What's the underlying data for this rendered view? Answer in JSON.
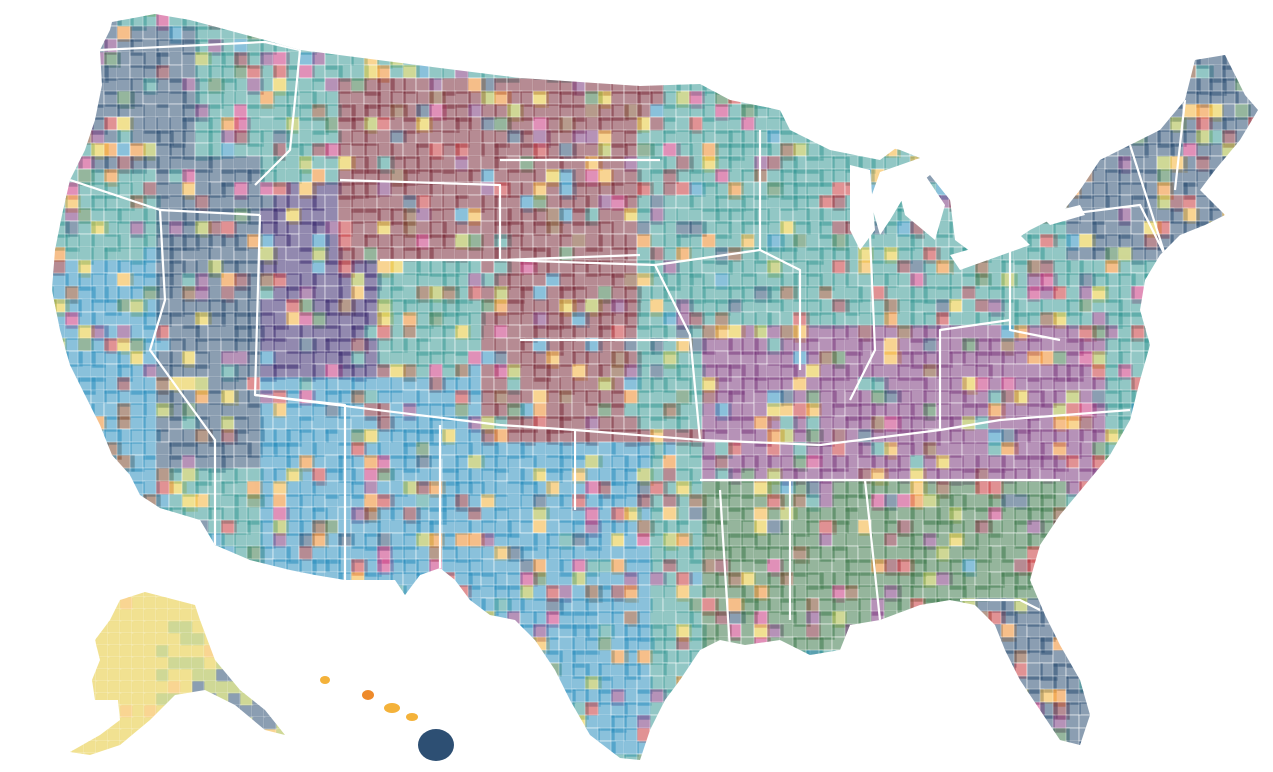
{
  "map": {
    "type": "choropleth",
    "subject": "",
    "palette": [
      {
        "name": "navy",
        "hex": "#2d4f73"
      },
      {
        "name": "maroon",
        "hex": "#7b2d3b"
      },
      {
        "name": "teal",
        "hex": "#3a9a95"
      },
      {
        "name": "sky-blue",
        "hex": "#2b8fbe"
      },
      {
        "name": "purple",
        "hex": "#7b3a7e"
      },
      {
        "name": "dark-green",
        "hex": "#3f7a4d"
      },
      {
        "name": "brown",
        "hex": "#7c4a2e"
      },
      {
        "name": "yellow",
        "hex": "#e6c838"
      },
      {
        "name": "amber",
        "hex": "#f4b23a"
      },
      {
        "name": "orange",
        "hex": "#ee8a2a"
      },
      {
        "name": "red",
        "hex": "#c8393c"
      },
      {
        "name": "magenta",
        "hex": "#c8367f"
      },
      {
        "name": "olive",
        "hex": "#a8b840"
      },
      {
        "name": "indigo",
        "hex": "#3a2a6e"
      }
    ],
    "regions": [
      {
        "name": "pacific-northwest",
        "dominant": "navy"
      },
      {
        "name": "california",
        "dominant": "sky-blue"
      },
      {
        "name": "great-basin",
        "dominant": "navy"
      },
      {
        "name": "utah",
        "dominant": "indigo"
      },
      {
        "name": "arizona-nm",
        "dominant": "sky-blue"
      },
      {
        "name": "northern-plains",
        "dominant": "maroon"
      },
      {
        "name": "central-plains",
        "dominant": "maroon"
      },
      {
        "name": "texas",
        "dominant": "sky-blue"
      },
      {
        "name": "midwest",
        "dominant": "teal"
      },
      {
        "name": "appalachia",
        "dominant": "purple"
      },
      {
        "name": "deep-south",
        "dominant": "dark-green"
      },
      {
        "name": "new-england",
        "dominant": "navy"
      },
      {
        "name": "florida",
        "dominant": "navy"
      },
      {
        "name": "alaska",
        "dominant": "yellow"
      },
      {
        "name": "hawaii",
        "dominant": "navy"
      }
    ]
  }
}
